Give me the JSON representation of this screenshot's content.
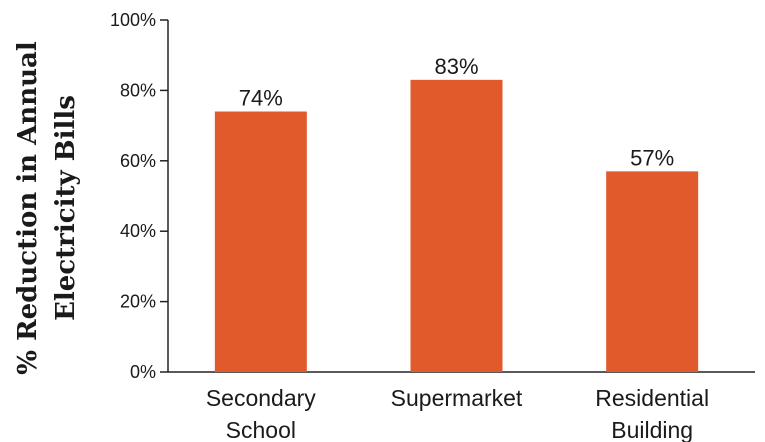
{
  "chart_data": {
    "type": "bar",
    "categories": [
      [
        "Secondary",
        "School"
      ],
      [
        "Supermarket"
      ],
      [
        "Residential",
        "Building"
      ]
    ],
    "values": [
      74,
      83,
      57
    ],
    "data_labels": [
      "74%",
      "83%",
      "57%"
    ],
    "ylabel": [
      "% Reduction in Annual",
      "Electricity Bills"
    ],
    "yticks": [
      0,
      20,
      40,
      60,
      80,
      100
    ],
    "ytick_labels": [
      "0%",
      "20%",
      "40%",
      "60%",
      "80%",
      "100%"
    ],
    "ylim": [
      0,
      100
    ],
    "grid": false,
    "bar_color": "#e05a2b"
  }
}
